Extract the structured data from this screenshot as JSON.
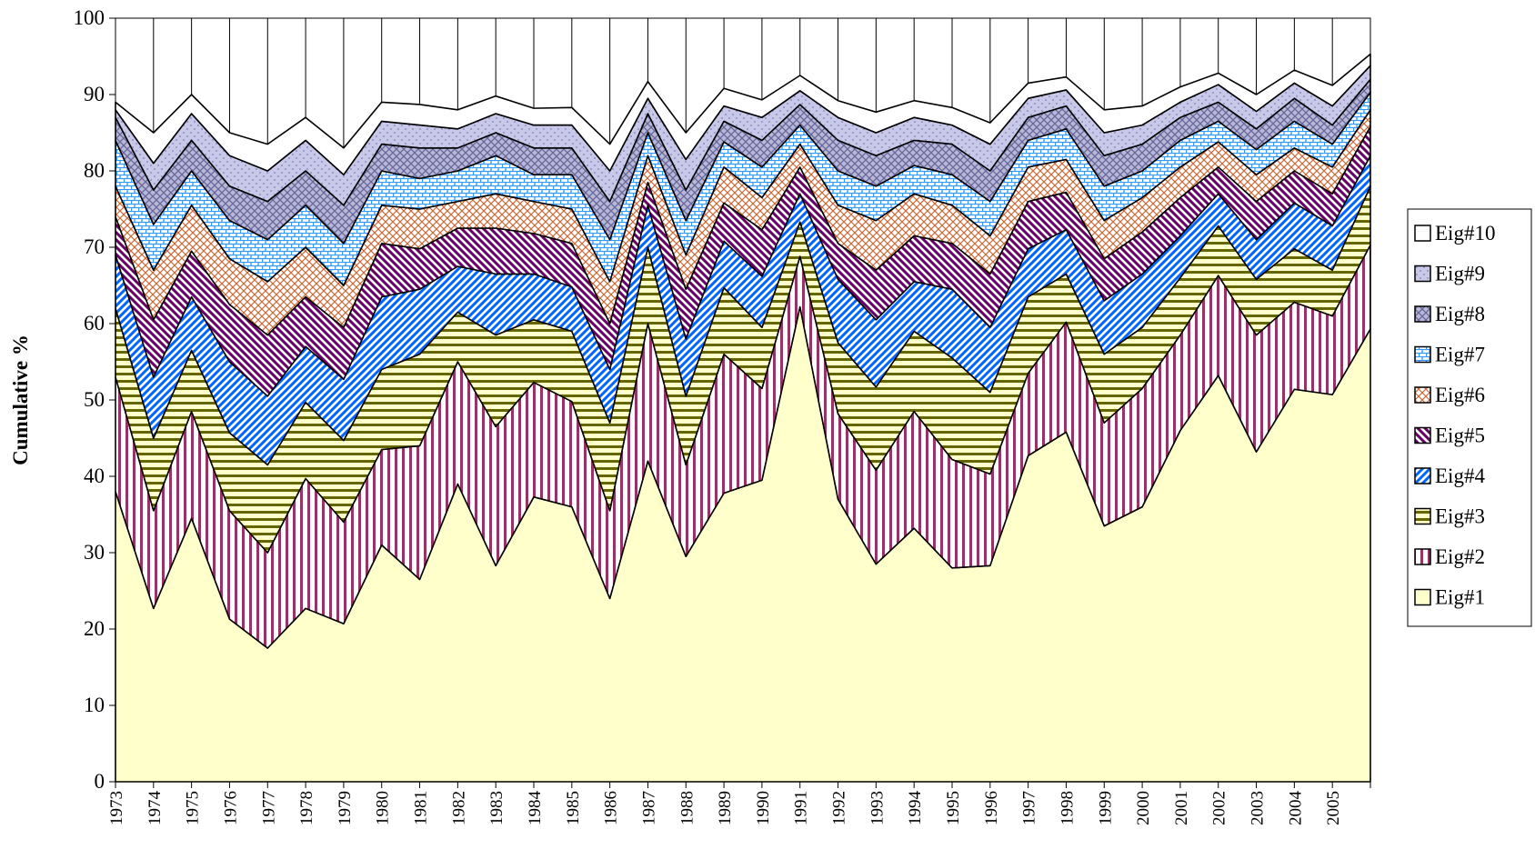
{
  "chart_data": {
    "type": "stacked_area",
    "y_label": "Cumulative %",
    "categories": [
      "1973",
      "1974",
      "1975",
      "1976",
      "1977",
      "1978",
      "1979",
      "1980",
      "1981",
      "1982",
      "1983",
      "1984",
      "1985",
      "1986",
      "1987",
      "1988",
      "1989",
      "1990",
      "1991",
      "1992",
      "1993",
      "1994",
      "1995",
      "1996",
      "1997",
      "1998",
      "1999",
      "2000",
      "2001",
      "2002",
      "2003",
      "2004",
      "2005",
      null
    ],
    "ylim": [
      0,
      100
    ],
    "yticks": [
      0,
      10,
      20,
      30,
      40,
      50,
      60,
      70,
      80,
      90,
      100
    ],
    "series": [
      {
        "name": "Eig#1",
        "color": "#ffffcc",
        "values": [
          38,
          22.7,
          34.5,
          21.3,
          17.5,
          22.7,
          20.7,
          31,
          26.5,
          39,
          28.3,
          37.3,
          36,
          24,
          42,
          29.5,
          37.8,
          39.5,
          62.2,
          37,
          28.5,
          33.2,
          28,
          28.3,
          42.7,
          45.8,
          33.5,
          36,
          46,
          53.2,
          43.2,
          51.4,
          50.7,
          59.3
        ]
      },
      {
        "name": "Eig#2",
        "color": "#993366",
        "values": [
          15,
          12.8,
          14,
          14.2,
          12.5,
          17,
          13.3,
          12.5,
          17.5,
          16,
          18.2,
          15,
          13.8,
          11.5,
          18,
          12,
          18.2,
          12,
          6.6,
          11.2,
          12.3,
          15.3,
          14.2,
          12,
          10.8,
          14.4,
          13.5,
          15.5,
          12.5,
          13.1,
          15.3,
          11.4,
          10.3,
          11
        ]
      },
      {
        "name": "Eig#3",
        "color": "#666600",
        "values": [
          9,
          9.5,
          8,
          10.2,
          11.5,
          10,
          10.7,
          10.5,
          12,
          6.5,
          12,
          8.2,
          9.2,
          11.5,
          10,
          9,
          8.7,
          8,
          4.5,
          9.3,
          10.9,
          10.5,
          13.3,
          10.7,
          10,
          6.3,
          9,
          8,
          7.5,
          6.5,
          7.3,
          7,
          6,
          7.7
        ]
      },
      {
        "name": "Eig#4",
        "color": "#0066ff",
        "values": [
          7,
          8,
          7,
          9.3,
          9,
          7.3,
          8,
          9.5,
          8.5,
          6,
          8,
          6,
          5.8,
          7,
          5.5,
          7.5,
          6.1,
          6.7,
          3.7,
          8.3,
          8.8,
          6.5,
          9,
          8.5,
          6.3,
          5.8,
          7,
          7,
          5.5,
          4.2,
          5.2,
          6,
          5.8,
          4
        ]
      },
      {
        "name": "Eig#5",
        "color": "#660066",
        "values": [
          5,
          7.5,
          6,
          7.5,
          8,
          6.5,
          6.8,
          7,
          5.3,
          5,
          6,
          5.3,
          5.7,
          6,
          3,
          6.5,
          5,
          6.1,
          3.5,
          4.7,
          6.5,
          6,
          6,
          7,
          6.2,
          4.9,
          5.5,
          5.5,
          5,
          3.5,
          5,
          4.2,
          4.2,
          3.8
        ]
      },
      {
        "name": "Eig#6",
        "color": "#cc6633",
        "values": [
          4,
          6.5,
          6,
          6,
          7,
          6.5,
          5.5,
          5,
          5.2,
          3.5,
          4.5,
          4.2,
          4.5,
          5.5,
          3.5,
          4.5,
          4.7,
          4.2,
          3,
          5,
          6.5,
          5.5,
          5,
          5,
          4.5,
          4.3,
          5,
          4.5,
          4,
          3.3,
          3.5,
          3,
          3.5,
          2.2
        ]
      },
      {
        "name": "Eig#7",
        "color": "#3399ff",
        "values": [
          6,
          6,
          4.5,
          5,
          5.5,
          5.5,
          5.5,
          4.5,
          4,
          4,
          5,
          3.5,
          4.5,
          5.5,
          3,
          4.5,
          3.3,
          4,
          2.5,
          4.5,
          4.5,
          3.7,
          4,
          4.5,
          3.5,
          4,
          4.5,
          3.5,
          3.5,
          2.7,
          3.3,
          3.5,
          3,
          2.3
        ]
      },
      {
        "name": "Eig#8",
        "color": "#666699",
        "values": [
          3,
          4.5,
          4,
          4.5,
          5,
          4.5,
          5,
          3.5,
          4,
          3,
          3,
          3.5,
          3.5,
          5,
          2.5,
          4,
          2.7,
          3.5,
          2.7,
          4,
          4,
          3.3,
          4,
          4,
          3,
          3,
          4,
          3.5,
          3,
          2.5,
          2.7,
          3,
          2.5,
          1.7
        ]
      },
      {
        "name": "Eig#9",
        "color": "#9999cc",
        "values": [
          1,
          3.5,
          3.5,
          4,
          4,
          4,
          4,
          3,
          3,
          2.5,
          2.5,
          3,
          3,
          4,
          2,
          4,
          2,
          3,
          1.8,
          3,
          3,
          3,
          2.5,
          3.5,
          2.5,
          2.1,
          3,
          2.5,
          2,
          2.3,
          2.3,
          2,
          2.5,
          1.8
        ]
      },
      {
        "name": "Eig#10",
        "color": "#ffffff",
        "values": [
          1,
          4,
          2.5,
          3,
          3.5,
          3,
          3.5,
          2.5,
          2.7,
          2.5,
          2.3,
          2.2,
          2.3,
          3.5,
          2.2,
          3.5,
          2.3,
          2.3,
          2,
          2.2,
          2.7,
          2.2,
          2.3,
          2.8,
          2,
          1.7,
          3,
          2.5,
          2,
          1.5,
          2.2,
          1.7,
          2.7,
          1.5
        ]
      }
    ]
  }
}
